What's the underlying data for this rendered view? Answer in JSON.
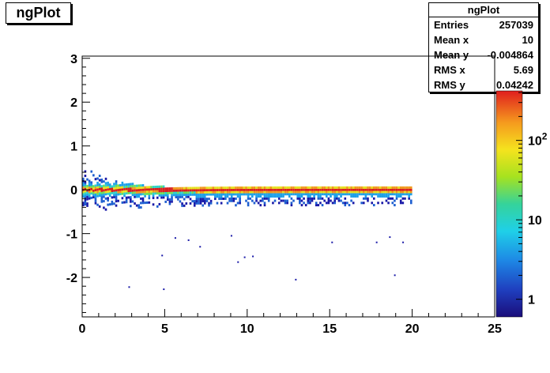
{
  "title": "ngPlot",
  "stats": {
    "title": "ngPlot",
    "rows": [
      {
        "label": "Entries",
        "value": "257039"
      },
      {
        "label": "Mean x",
        "value": "10"
      },
      {
        "label": "Mean y",
        "value": "-0.004864"
      },
      {
        "label": "RMS x",
        "value": "5.69"
      },
      {
        "label": "RMS y",
        "value": "0.04242"
      }
    ]
  },
  "chart_data": {
    "type": "heatmap",
    "title": "ngPlot",
    "xlabel": "",
    "ylabel": "",
    "xlim": [
      0,
      25
    ],
    "ylim": [
      -2.9,
      3.05
    ],
    "x_ticks": [
      "0",
      "5",
      "10",
      "15",
      "20",
      "25"
    ],
    "y_ticks": [
      "-2",
      "-1",
      "0",
      "1",
      "2",
      "3"
    ],
    "z_scale": "log",
    "z_ticks": [
      {
        "base": "1",
        "exp": "",
        "value": 1
      },
      {
        "base": "10",
        "exp": "",
        "value": 10
      },
      {
        "base": "10",
        "exp": "2",
        "value": 100
      }
    ],
    "band": {
      "x_range": [
        0,
        20
      ],
      "y_center": 0.0
    },
    "outliers": [
      [
        2.8,
        -2.22
      ],
      [
        4.9,
        -2.27
      ],
      [
        4.8,
        -1.5
      ],
      [
        9.4,
        -1.65
      ],
      [
        9.8,
        -1.54
      ],
      [
        10.3,
        -1.52
      ],
      [
        12.9,
        -2.05
      ],
      [
        18.9,
        -1.95
      ],
      [
        6.4,
        -1.15
      ],
      [
        7.1,
        -1.3
      ],
      [
        5.6,
        -1.1
      ],
      [
        9.0,
        -1.05
      ],
      [
        15.1,
        -1.2
      ],
      [
        17.8,
        -1.2
      ],
      [
        18.6,
        -1.08
      ],
      [
        19.4,
        -1.2
      ]
    ]
  }
}
